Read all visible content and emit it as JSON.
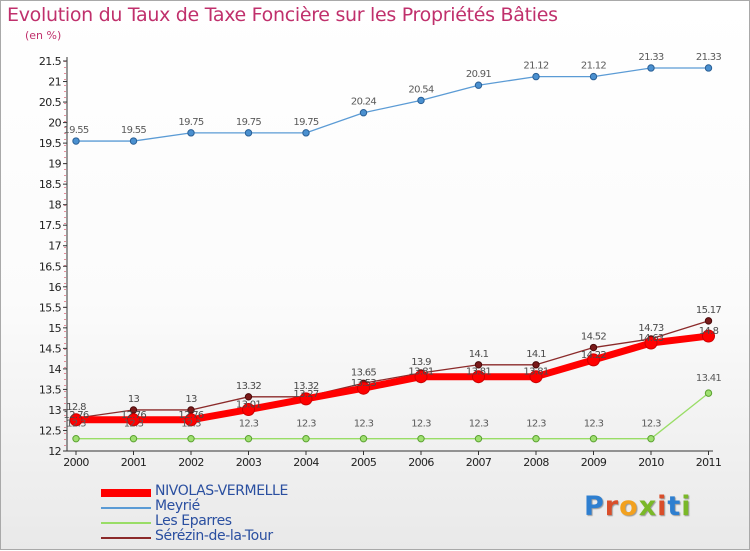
{
  "chart_data": {
    "type": "line",
    "title": "Evolution du Taux de Taxe Foncière sur les Propriétés Bâties",
    "subtitle": "(en %)",
    "categories": [
      "2000",
      "2001",
      "2002",
      "2003",
      "2004",
      "2005",
      "2006",
      "2007",
      "2008",
      "2009",
      "2010",
      "2011"
    ],
    "ylim": [
      12,
      21.5
    ],
    "yticks": [
      "12",
      "12.5",
      "13",
      "13.5",
      "14",
      "14.5",
      "15",
      "15.5",
      "16",
      "16.5",
      "17",
      "17.5",
      "18",
      "18.5",
      "19",
      "19.5",
      "20",
      "20.5",
      "21",
      "21.5"
    ],
    "grid": false,
    "legend_position": "bottom-left",
    "series": [
      {
        "name": "NIVOLAS-VERMELLE",
        "color": "#ff0000",
        "values": [
          12.76,
          12.76,
          12.76,
          13.01,
          13.27,
          13.53,
          13.81,
          13.81,
          13.81,
          14.22,
          14.63,
          14.8
        ],
        "labels": [
          "12.76",
          "12.76",
          "12.76",
          "13.01",
          "13.27",
          "13.53",
          "13.81",
          "13.81",
          "13.81",
          "14.22",
          "14.63",
          "14.8"
        ]
      },
      {
        "name": "Meyrié",
        "color": "#5b9bd5",
        "values": [
          19.55,
          19.55,
          19.75,
          19.75,
          19.75,
          20.24,
          20.54,
          20.91,
          21.12,
          21.12,
          21.33,
          21.33
        ],
        "labels": [
          "19.55",
          "19.55",
          "19.75",
          "19.75",
          "19.75",
          "20.24",
          "20.54",
          "20.91",
          "21.12",
          "21.12",
          "21.33",
          "21.33"
        ]
      },
      {
        "name": "Les Eparres",
        "color": "#99dd66",
        "values": [
          12.3,
          12.3,
          12.3,
          12.3,
          12.3,
          12.3,
          12.3,
          12.3,
          12.3,
          12.3,
          12.3,
          13.41
        ],
        "labels": [
          "12.3",
          "12.3",
          "12.3",
          "12.3",
          "12.3",
          "12.3",
          "12.3",
          "12.3",
          "12.3",
          "12.3",
          "12.3",
          "13.41"
        ]
      },
      {
        "name": "Sérézin-de-la-Tour",
        "color": "#8b2a2a",
        "values": [
          12.8,
          13.0,
          13.0,
          13.32,
          13.32,
          13.65,
          13.9,
          14.1,
          14.1,
          14.52,
          14.73,
          15.17
        ],
        "labels": [
          "12.8",
          "13",
          "13",
          "13.32",
          "13.32",
          "13.65",
          "13.9",
          "14.1",
          "14.1",
          "14.52",
          "14.73",
          "15.17"
        ]
      }
    ]
  },
  "logo": {
    "text": "Proxiti",
    "letters": [
      "P",
      "r",
      "o",
      "x",
      "i",
      "t",
      "i"
    ],
    "colors": [
      "#2e7fd0",
      "#d94e2a",
      "#f2a11f",
      "#7ab828",
      "#d94e2a",
      "#2e7fd0",
      "#7ab828"
    ]
  }
}
